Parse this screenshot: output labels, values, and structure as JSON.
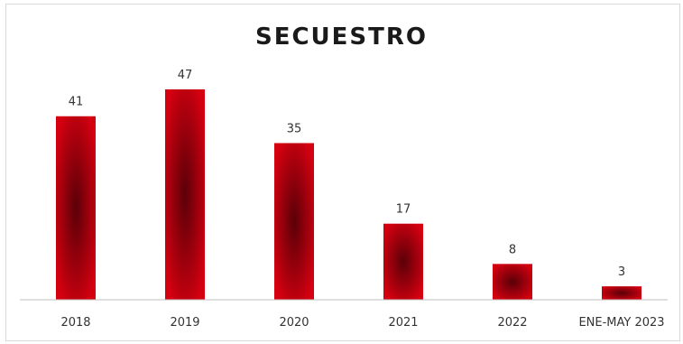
{
  "chart_data": {
    "type": "bar",
    "title": "SECUESTRO",
    "categories": [
      "2018",
      "2019",
      "2020",
      "2021",
      "2022",
      "ENE-MAY 2023"
    ],
    "values": [
      41,
      47,
      35,
      17,
      8,
      3
    ],
    "data_labels": [
      "41",
      "47",
      "35",
      "17",
      "8",
      "3"
    ],
    "xlabel": "",
    "ylabel": "",
    "ylim": [
      0,
      47
    ],
    "grid": false,
    "legend": "none",
    "bar_color": "#d40010",
    "bar_dark": "#5a0008"
  }
}
